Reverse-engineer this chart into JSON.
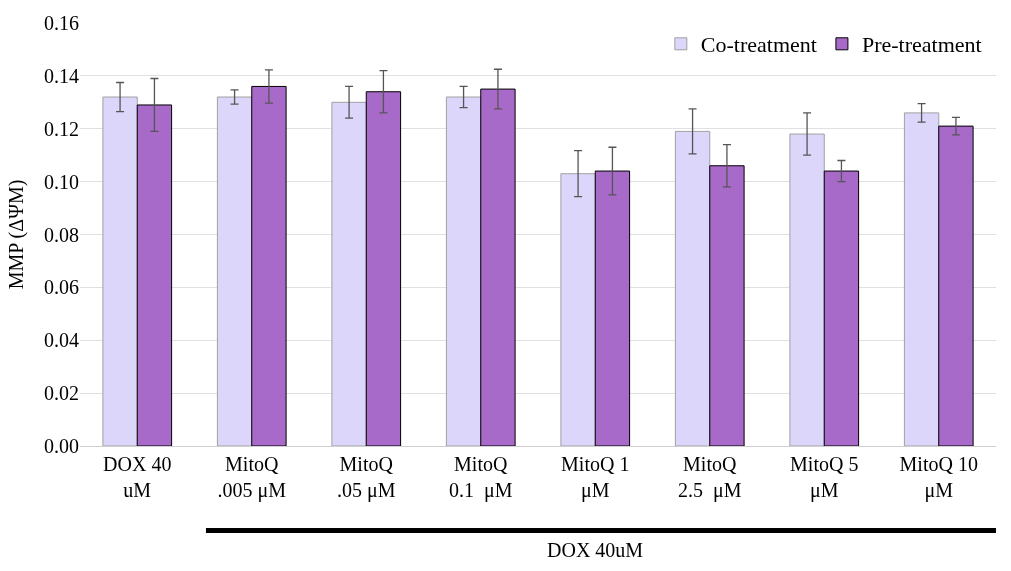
{
  "chart_data": {
    "type": "bar",
    "ylabel": "MMP (ΔΨM)",
    "categories": [
      "DOX 40\nuM",
      "MitoQ\n.005 μM",
      "MitoQ\n.05 μM",
      "MitoQ\n0.1  μM",
      "MitoQ 1\nμM",
      "MitoQ\n2.5  μM",
      "MitoQ 5\nμM",
      "MitoQ 10\nμM"
    ],
    "series": [
      {
        "name": "Co-treatment",
        "color": "#dcd6fb",
        "values": [
          0.132,
          0.132,
          0.13,
          0.132,
          0.103,
          0.119,
          0.118,
          0.126
        ],
        "errors": [
          0.0055,
          0.0027,
          0.006,
          0.004,
          0.0087,
          0.0085,
          0.008,
          0.0035
        ]
      },
      {
        "name": "Pre-treatment",
        "color": "#a86ac9",
        "values": [
          0.129,
          0.136,
          0.134,
          0.135,
          0.104,
          0.106,
          0.104,
          0.121
        ],
        "errors": [
          0.01,
          0.0063,
          0.008,
          0.0075,
          0.009,
          0.008,
          0.004,
          0.0033
        ]
      }
    ],
    "ylim": [
      0,
      0.16
    ],
    "yticks": [
      {
        "value": 0,
        "label": "0.00"
      },
      {
        "value": 0.02,
        "label": "0.02"
      },
      {
        "value": 0.04,
        "label": "0.04"
      },
      {
        "value": 0.06,
        "label": "0.06"
      },
      {
        "value": 0.08,
        "label": "0.08"
      },
      {
        "value": 0.1,
        "label": "0.10"
      },
      {
        "value": 0.12,
        "label": "0.12"
      },
      {
        "value": 0.14,
        "label": "0.14"
      },
      {
        "value": 0.16,
        "label": "0.16"
      }
    ],
    "grid": "y",
    "legend": "top right",
    "annotations": [
      "DOX 40uM"
    ]
  }
}
